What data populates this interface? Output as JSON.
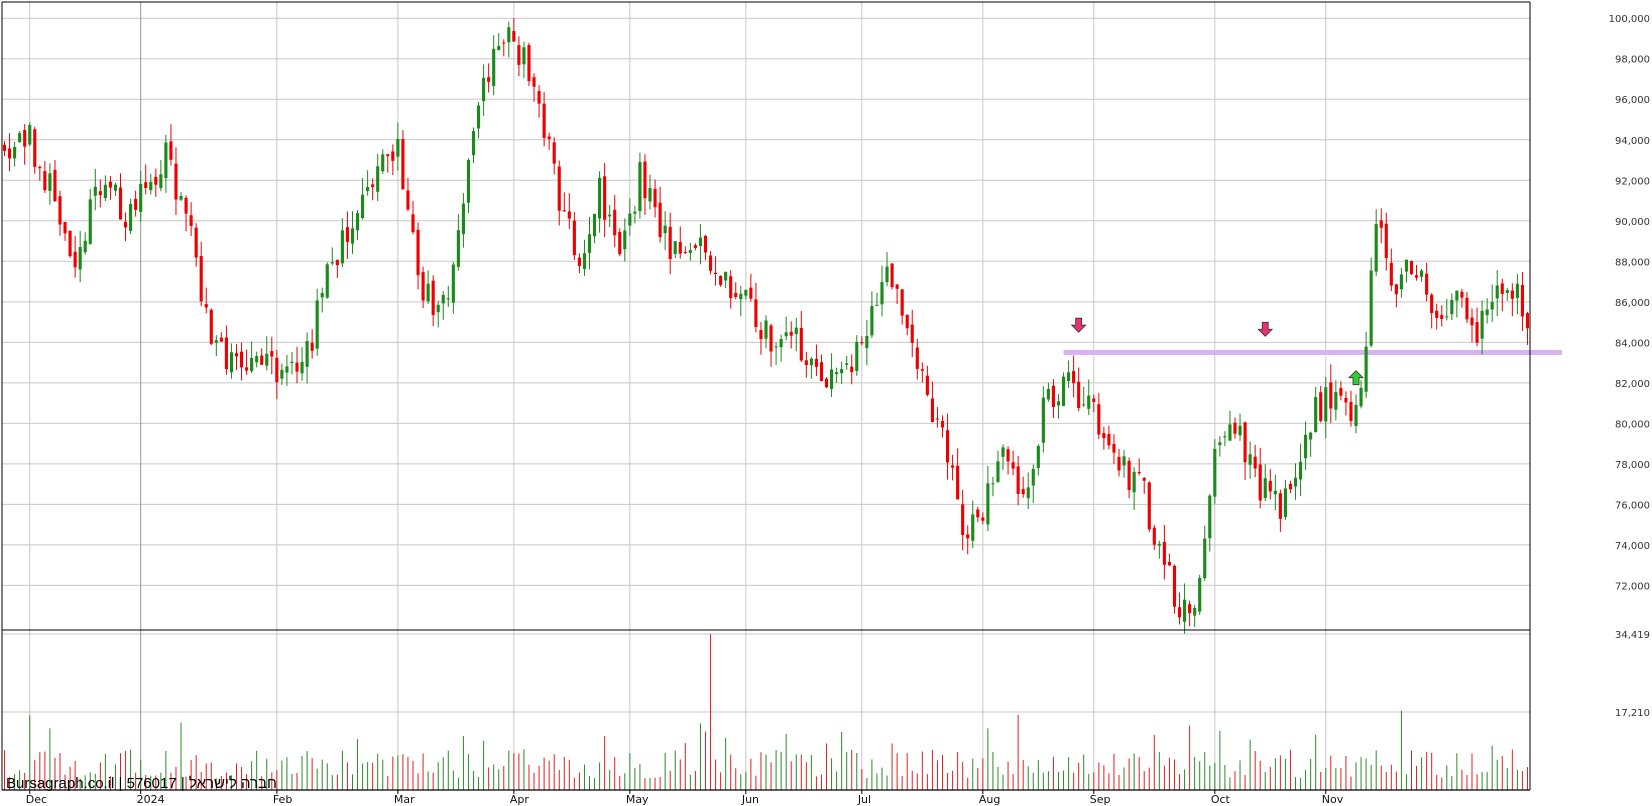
{
  "chart_data": {
    "type": "candlestick",
    "symbol": "576017",
    "watermark": "Bursagraph.co.il | 576017 | חברה לישראל",
    "x_labels": [
      "Dec",
      "2024",
      "Feb",
      "Mar",
      "Apr",
      "May",
      "Jun",
      "Jul",
      "Aug",
      "Sep",
      "Oct",
      "Nov"
    ],
    "price_ticks": [
      "100,000",
      "98,000",
      "96,000",
      "94,000",
      "92,000",
      "90,000",
      "88,000",
      "86,000",
      "84,000",
      "82,000",
      "80,000",
      "78,000",
      "76,000",
      "74,000",
      "72,000"
    ],
    "price_tick_values": [
      100000,
      98000,
      96000,
      94000,
      92000,
      90000,
      88000,
      86000,
      84000,
      82000,
      80000,
      78000,
      76000,
      74000,
      72000
    ],
    "price_range": [
      69800,
      100800
    ],
    "volume_ticks": [
      "34,419",
      "17,210"
    ],
    "volume_tick_values": [
      34419,
      17210
    ],
    "volume_range": [
      0,
      34419
    ],
    "support_line": {
      "price": 83500,
      "color": "#d9b3f0"
    },
    "markers": [
      {
        "type": "down-arrow",
        "color": "#e8336a",
        "price": 84500,
        "bar_index": 213
      },
      {
        "type": "down-arrow",
        "color": "#e8336a",
        "price": 84300,
        "bar_index": 250
      },
      {
        "type": "up-arrow",
        "color": "#33cc33",
        "price": 82600,
        "bar_index": 268
      }
    ],
    "colors": {
      "up": "#1a8a1a",
      "down": "#ee0000",
      "grid": "#c8c8c8",
      "axis": "#000000"
    },
    "grid": true,
    "anchors": [
      [
        0,
        93500
      ],
      [
        5,
        94200
      ],
      [
        10,
        91000
      ],
      [
        14,
        88500
      ],
      [
        20,
        92000
      ],
      [
        25,
        90000
      ],
      [
        32,
        93500
      ],
      [
        38,
        88000
      ],
      [
        42,
        83500
      ],
      [
        48,
        82600
      ],
      [
        55,
        82800
      ],
      [
        60,
        83500
      ],
      [
        65,
        88000
      ],
      [
        72,
        92000
      ],
      [
        78,
        93500
      ],
      [
        82,
        87000
      ],
      [
        86,
        85000
      ],
      [
        90,
        89000
      ],
      [
        94,
        96000
      ],
      [
        98,
        99000
      ],
      [
        102,
        98500
      ],
      [
        106,
        96000
      ],
      [
        110,
        91000
      ],
      [
        114,
        88500
      ],
      [
        118,
        91500
      ],
      [
        122,
        87500
      ],
      [
        126,
        92500
      ],
      [
        130,
        89000
      ],
      [
        136,
        89000
      ],
      [
        142,
        87000
      ],
      [
        148,
        86000
      ],
      [
        152,
        84000
      ],
      [
        156,
        85000
      ],
      [
        162,
        82000
      ],
      [
        166,
        82500
      ],
      [
        170,
        84200
      ],
      [
        174,
        87500
      ],
      [
        178,
        86000
      ],
      [
        182,
        82000
      ],
      [
        186,
        79500
      ],
      [
        190,
        74500
      ],
      [
        194,
        75500
      ],
      [
        198,
        79000
      ],
      [
        202,
        76000
      ],
      [
        206,
        80500
      ],
      [
        210,
        82000
      ],
      [
        214,
        81000
      ],
      [
        218,
        80000
      ],
      [
        222,
        77500
      ],
      [
        226,
        76500
      ],
      [
        230,
        73000
      ],
      [
        233,
        71000
      ],
      [
        236,
        71200
      ],
      [
        240,
        78000
      ],
      [
        244,
        80000
      ],
      [
        248,
        77500
      ],
      [
        252,
        75800
      ],
      [
        256,
        77000
      ],
      [
        260,
        80800
      ],
      [
        264,
        81500
      ],
      [
        268,
        80500
      ],
      [
        270,
        83500
      ],
      [
        272,
        90000
      ],
      [
        276,
        86500
      ],
      [
        280,
        88000
      ],
      [
        284,
        85000
      ],
      [
        288,
        86000
      ],
      [
        292,
        84500
      ],
      [
        296,
        87500
      ],
      [
        300,
        86500
      ],
      [
        302,
        84600
      ]
    ],
    "n_bars": 303,
    "seed": 576017
  }
}
